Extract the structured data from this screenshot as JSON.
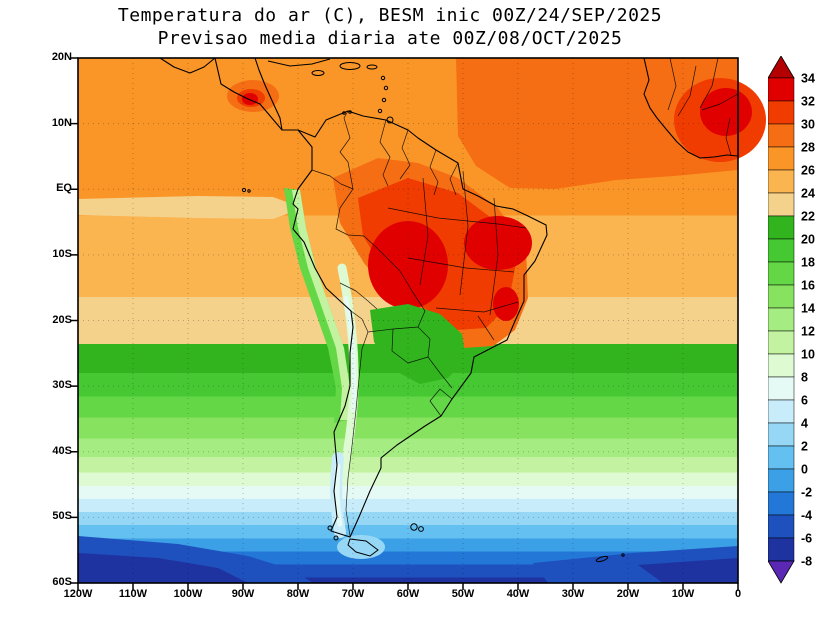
{
  "title": {
    "line1": "Temperatura do ar (C), BESM inic 00Z/24/SEP/2025",
    "line2": "Previsao media diaria ate 00Z/08/OCT/2025"
  },
  "map": {
    "lat_ticks": [
      {
        "label": "20N",
        "deg": 20
      },
      {
        "label": "10N",
        "deg": 10
      },
      {
        "label": "EQ",
        "deg": 0
      },
      {
        "label": "10S",
        "deg": -10
      },
      {
        "label": "20S",
        "deg": -20
      },
      {
        "label": "30S",
        "deg": -30
      },
      {
        "label": "40S",
        "deg": -40
      },
      {
        "label": "50S",
        "deg": -50
      },
      {
        "label": "60S",
        "deg": -60
      }
    ],
    "lon_ticks": [
      {
        "label": "120W",
        "deg_w": 120
      },
      {
        "label": "110W",
        "deg_w": 110
      },
      {
        "label": "100W",
        "deg_w": 100
      },
      {
        "label": "90W",
        "deg_w": 90
      },
      {
        "label": "80W",
        "deg_w": 80
      },
      {
        "label": "70W",
        "deg_w": 70
      },
      {
        "label": "60W",
        "deg_w": 60
      },
      {
        "label": "50W",
        "deg_w": 50
      },
      {
        "label": "40W",
        "deg_w": 40
      },
      {
        "label": "30W",
        "deg_w": 30
      },
      {
        "label": "20W",
        "deg_w": 20
      },
      {
        "label": "10W",
        "deg_w": 10
      },
      {
        "label": "0",
        "deg_w": 0
      }
    ]
  },
  "colorbar": {
    "levels": [
      34,
      32,
      30,
      28,
      26,
      24,
      22,
      20,
      18,
      16,
      14,
      12,
      10,
      8,
      6,
      4,
      2,
      0,
      -2,
      -4,
      -6,
      -8
    ],
    "palette": [
      "#b40000",
      "#e10000",
      "#f03c00",
      "#f56e14",
      "#fa9628",
      "#fab450",
      "#f5d28c",
      "#32b41e",
      "#46c832",
      "#64d746",
      "#87e25f",
      "#a5ec82",
      "#c3f2a0",
      "#defad2",
      "#e6faf5",
      "#c8ecfa",
      "#96d7f5",
      "#64c0f0",
      "#3ca0e6",
      "#2378d7",
      "#1e50be",
      "#1e32a0",
      "#5a28b4"
    ]
  },
  "chart_data": {
    "type": "heatmap",
    "title": "Temperatura do ar (C), BESM inic 00Z/24/SEP/2025",
    "subtitle": "Previsao media diaria ate 00Z/08/OCT/2025",
    "units": "degC",
    "x_range_deg_west": [
      120,
      0
    ],
    "y_range_deg_lat": [
      -60,
      20
    ],
    "grid": "dotted lines every 10 degrees",
    "legend_position": "right vertical colorbar with over/under arrows",
    "color_levels_C": [
      34,
      32,
      30,
      28,
      26,
      24,
      22,
      20,
      18,
      16,
      14,
      12,
      10,
      8,
      6,
      4,
      2,
      0,
      -2,
      -4,
      -6,
      -8
    ],
    "zonal_mean_estimate_C": [
      [
        20,
        27
      ],
      [
        10,
        27
      ],
      [
        0,
        27
      ],
      [
        -10,
        26
      ],
      [
        -20,
        23
      ],
      [
        -25,
        21
      ],
      [
        -30,
        18
      ],
      [
        -35,
        14
      ],
      [
        -40,
        11
      ],
      [
        -45,
        8
      ],
      [
        -50,
        4
      ],
      [
        -55,
        0
      ],
      [
        -60,
        -6
      ]
    ],
    "notable_features": [
      {
        "feature": "warm core over central and eastern Brazil (Amazon/cerrado)",
        "approx_lon_w": 55,
        "approx_lat": -10,
        "approx_temp_C": 33
      },
      {
        "feature": "warm core over West Africa (top-right corner)",
        "approx_lon_w": 4,
        "approx_lat": 16,
        "approx_temp_C": 33
      },
      {
        "feature": "warm spot over Central America",
        "approx_lon_w": 89,
        "approx_lat": 14,
        "approx_temp_C": 32
      },
      {
        "feature": "cool high-Andes ridge strip",
        "approx_lon_w": 70,
        "approx_lat": -25,
        "approx_temp_C": 8
      },
      {
        "feature": "cool Humboldt coastal tongue along Peru-Chile coast and equatorial Pacific",
        "approx_temp_C": 16
      },
      {
        "feature": "green mid-latitude band reaching ~20S over Paraguay / south Brazil",
        "approx_temp_C": 20
      },
      {
        "feature": "cold Southern Ocean band, darkest in bottom corners",
        "approx_lat": -58,
        "approx_temp_C": -8
      }
    ]
  }
}
